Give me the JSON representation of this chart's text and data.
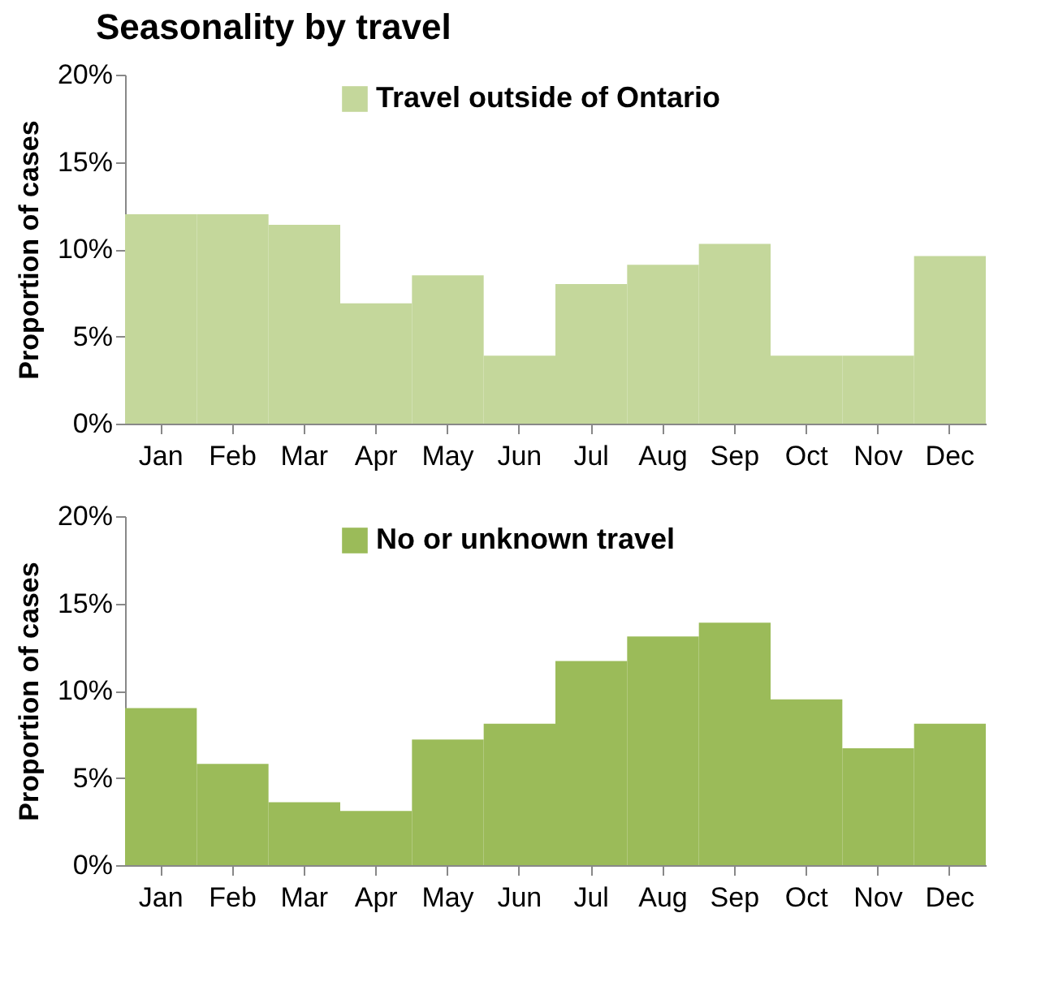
{
  "chart_data": [
    {
      "type": "bar",
      "title": "Seasonality by travel",
      "ylabel": "Proportion of  cases",
      "categories": [
        "Jan",
        "Feb",
        "Mar",
        "Apr",
        "May",
        "Jun",
        "Jul",
        "Aug",
        "Sep",
        "Oct",
        "Nov",
        "Dec"
      ],
      "series": [
        {
          "name": "Travel outside of Ontario",
          "color": "#c4d79b",
          "values": [
            12.0,
            12.0,
            11.4,
            6.9,
            8.5,
            3.9,
            8.0,
            9.1,
            10.3,
            3.9,
            3.9,
            9.6
          ]
        }
      ],
      "ylim": [
        0,
        20
      ],
      "yticks": [
        {
          "value": 0,
          "label": "0%"
        },
        {
          "value": 5,
          "label": "5%"
        },
        {
          "value": 10,
          "label": "10%"
        },
        {
          "value": 15,
          "label": "15%"
        },
        {
          "value": 20,
          "label": "20%"
        }
      ],
      "legend": "top",
      "grid": false
    },
    {
      "type": "bar",
      "ylabel": "Proportion of cases",
      "categories": [
        "Jan",
        "Feb",
        "Mar",
        "Apr",
        "May",
        "Jun",
        "Jul",
        "Aug",
        "Sep",
        "Oct",
        "Nov",
        "Dec"
      ],
      "series": [
        {
          "name": "No or unknown travel",
          "color": "#9bbb59",
          "values": [
            9.0,
            5.8,
            3.6,
            3.1,
            7.2,
            8.1,
            11.7,
            13.1,
            13.9,
            9.5,
            6.7,
            8.1
          ]
        }
      ],
      "ylim": [
        0,
        20
      ],
      "yticks": [
        {
          "value": 0,
          "label": "0%"
        },
        {
          "value": 5,
          "label": "5%"
        },
        {
          "value": 10,
          "label": "10%"
        },
        {
          "value": 15,
          "label": "15%"
        },
        {
          "value": 20,
          "label": "20%"
        }
      ],
      "legend": "top",
      "grid": false
    }
  ]
}
